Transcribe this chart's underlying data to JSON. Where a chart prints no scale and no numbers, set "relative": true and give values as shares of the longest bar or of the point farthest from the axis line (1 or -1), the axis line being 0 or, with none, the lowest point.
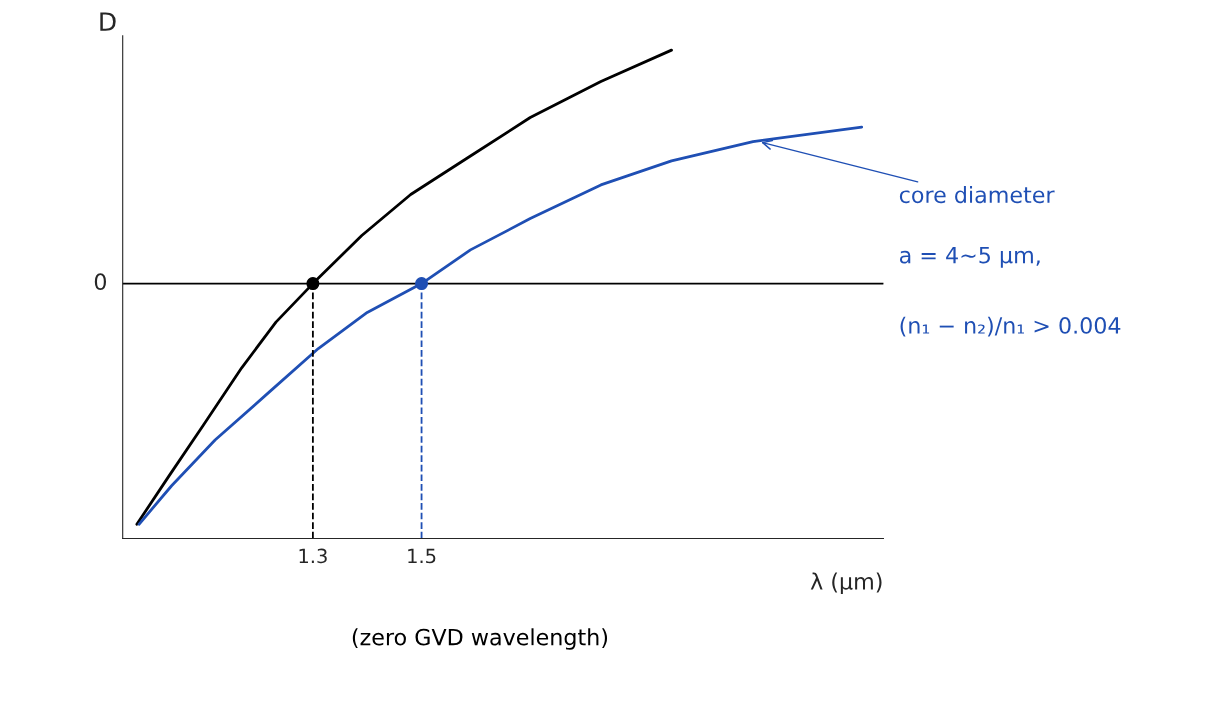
{
  "chart_data": {
    "type": "line",
    "relative": true,
    "ylabel": "D",
    "xlabel": "λ (μm)",
    "xlim": [
      0.95,
      2.35
    ],
    "xticks": [
      1.3,
      1.5
    ],
    "grid": false,
    "legend": false,
    "series": [
      {
        "color": "#000000",
        "x": [
          0.976,
          1.035,
          1.098,
          1.169,
          1.232,
          1.3,
          1.39,
          1.48,
          1.59,
          1.7,
          1.83,
          1.96
        ],
        "values": [
          -1.0,
          -0.8,
          -0.59,
          -0.35,
          -0.16,
          0,
          0.2,
          0.37,
          0.53,
          0.69,
          0.84,
          0.97
        ]
      },
      {
        "color": "#1f4fb4",
        "x": [
          0.98,
          1.04,
          1.12,
          1.22,
          1.31,
          1.4,
          1.5,
          1.59,
          1.7,
          1.83,
          1.96,
          2.11,
          2.31
        ],
        "values": [
          -1.0,
          -0.84,
          -0.65,
          -0.45,
          -0.27,
          -0.12,
          0,
          0.14,
          0.27,
          0.41,
          0.51,
          0.59,
          0.65
        ]
      },
      {
        "type": "scatter",
        "marker": "circle",
        "colors": [
          "#000000",
          "#1f4fb4"
        ],
        "x": [
          1.3,
          1.5
        ],
        "values": [
          0,
          0
        ]
      }
    ],
    "ref_lines": [
      {
        "axis": "y",
        "value": 0,
        "label": "0",
        "color": "#000000",
        "line_style": "solid"
      },
      {
        "axis": "x",
        "value": 1.3,
        "color": "#000000",
        "line_style": "dashed"
      },
      {
        "axis": "x",
        "value": 1.5,
        "color": "#1f4fb4",
        "line_style": "dashed"
      }
    ],
    "annotations": [
      {
        "text": "core diameter",
        "x": 2.12,
        "y": 0.59
      },
      "a = 4∼5 μm,",
      "(n₁ − n₂)/n₁ > 0.004",
      "(zero GVD wavelength)"
    ]
  }
}
